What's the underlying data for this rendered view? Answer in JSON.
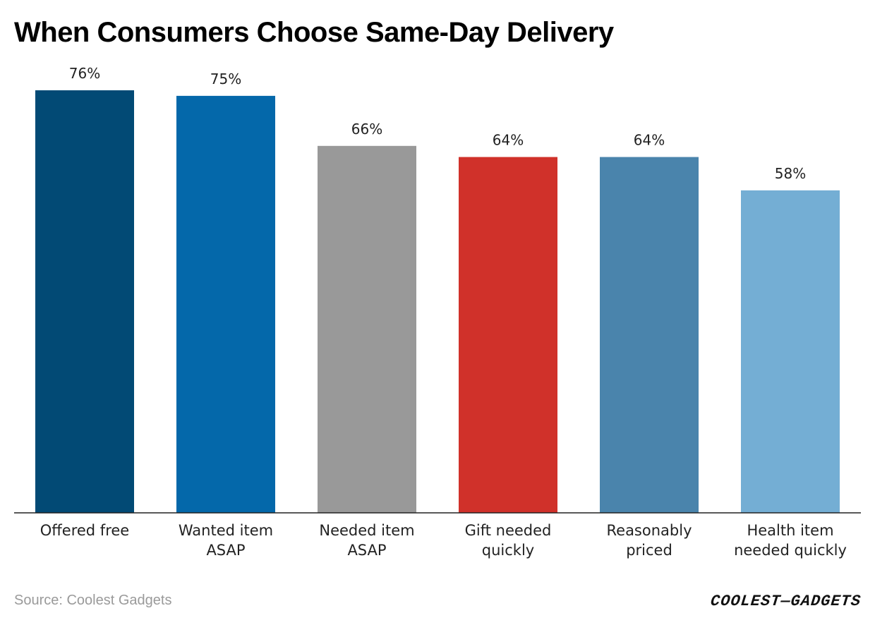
{
  "title": "When Consumers Choose Same-Day Delivery",
  "source": "Source: Coolest Gadgets",
  "logo_text": "COOLEST—GADGETS",
  "chart_data": {
    "type": "bar",
    "title": "When Consumers Choose Same-Day Delivery",
    "xlabel": "",
    "ylabel": "",
    "grid": false,
    "ylim": [
      0,
      76
    ],
    "categories": [
      [
        "Offered free"
      ],
      [
        "Wanted item",
        "ASAP"
      ],
      [
        "Needed item",
        "ASAP"
      ],
      [
        "Gift needed",
        "quickly"
      ],
      [
        "Reasonably",
        "priced"
      ],
      [
        "Health item",
        "needed quickly"
      ]
    ],
    "values": [
      76,
      75,
      66,
      64,
      64,
      58
    ],
    "value_labels": [
      "76%",
      "75%",
      "66%",
      "64%",
      "64%",
      "58%"
    ],
    "colors": [
      "#024A75",
      "#0468AA",
      "#999999",
      "#D0312A",
      "#4A84AC",
      "#74AED4"
    ]
  }
}
